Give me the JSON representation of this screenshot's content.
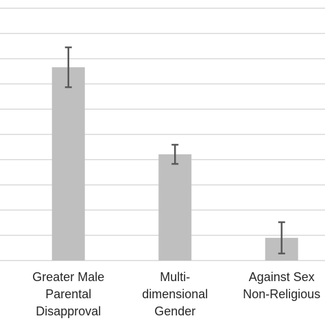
{
  "chart_data": {
    "type": "bar",
    "categories": [
      [
        "Greater Male",
        "Parental",
        "Disapproval"
      ],
      [
        "Multi-",
        "dimensional",
        "Gender"
      ],
      [
        "Against Sex",
        "Non-Religious"
      ]
    ],
    "values": [
      7.66,
      4.21,
      0.9
    ],
    "errors": [
      0.79,
      0.38,
      0.62
    ],
    "color": "#bfbfbf",
    "error_color": "#595959",
    "ylim": [
      0,
      10
    ],
    "yticks": [
      0,
      1,
      2,
      3,
      4,
      5,
      6,
      7,
      8,
      9,
      10
    ],
    "grid": true
  }
}
